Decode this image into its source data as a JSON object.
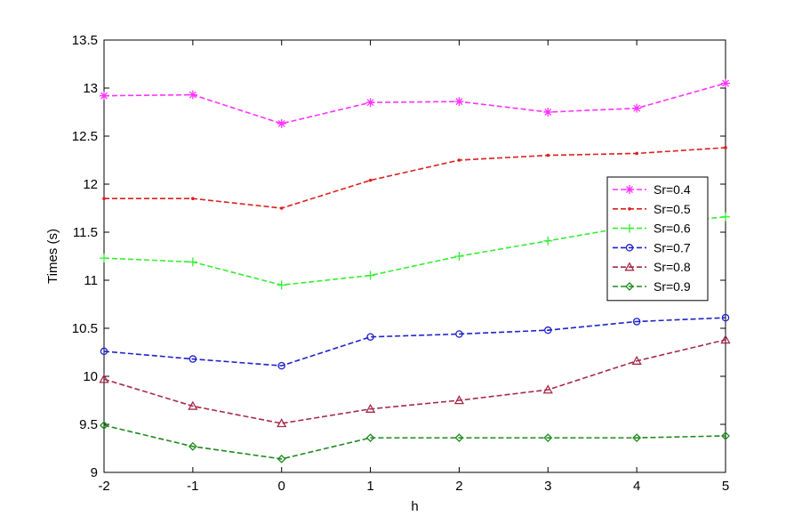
{
  "chart_data": {
    "type": "line",
    "title": "",
    "xlabel": "h",
    "ylabel": "Times (s)",
    "x": [
      -2,
      -1,
      0,
      1,
      2,
      3,
      4,
      5
    ],
    "xlim": [
      -2,
      5
    ],
    "ylim": [
      9,
      13.5
    ],
    "xticks": [
      "-2",
      "-1",
      "0",
      "1",
      "2",
      "3",
      "4",
      "5"
    ],
    "yticks": [
      "9",
      "9.5",
      "10",
      "10.5",
      "11",
      "11.5",
      "12",
      "12.5",
      "13",
      "13.5"
    ],
    "grid": false,
    "legend_position": "right",
    "series": [
      {
        "name": "Sr=0.4",
        "color": "#ff33ff",
        "marker": "star",
        "values": [
          12.92,
          12.93,
          12.63,
          12.85,
          12.86,
          12.75,
          12.79,
          13.05
        ]
      },
      {
        "name": "Sr=0.5",
        "color": "#dd1f1f",
        "marker": "point",
        "values": [
          11.85,
          11.85,
          11.75,
          12.04,
          12.25,
          12.3,
          12.32,
          12.38
        ]
      },
      {
        "name": "Sr=0.6",
        "color": "#33ee33",
        "marker": "plus",
        "values": [
          11.23,
          11.19,
          10.95,
          11.05,
          11.25,
          11.41,
          11.57,
          11.66
        ]
      },
      {
        "name": "Sr=0.7",
        "color": "#1f22cc",
        "marker": "circle",
        "values": [
          10.26,
          10.18,
          10.11,
          10.41,
          10.44,
          10.48,
          10.57,
          10.61
        ]
      },
      {
        "name": "Sr=0.8",
        "color": "#a52a4a",
        "marker": "triangle",
        "values": [
          9.97,
          9.69,
          9.51,
          9.66,
          9.75,
          9.86,
          10.16,
          10.38
        ]
      },
      {
        "name": "Sr=0.9",
        "color": "#1f8a1f",
        "marker": "diamond",
        "values": [
          9.49,
          9.27,
          9.14,
          9.36,
          9.36,
          9.36,
          9.36,
          9.38
        ]
      }
    ]
  }
}
